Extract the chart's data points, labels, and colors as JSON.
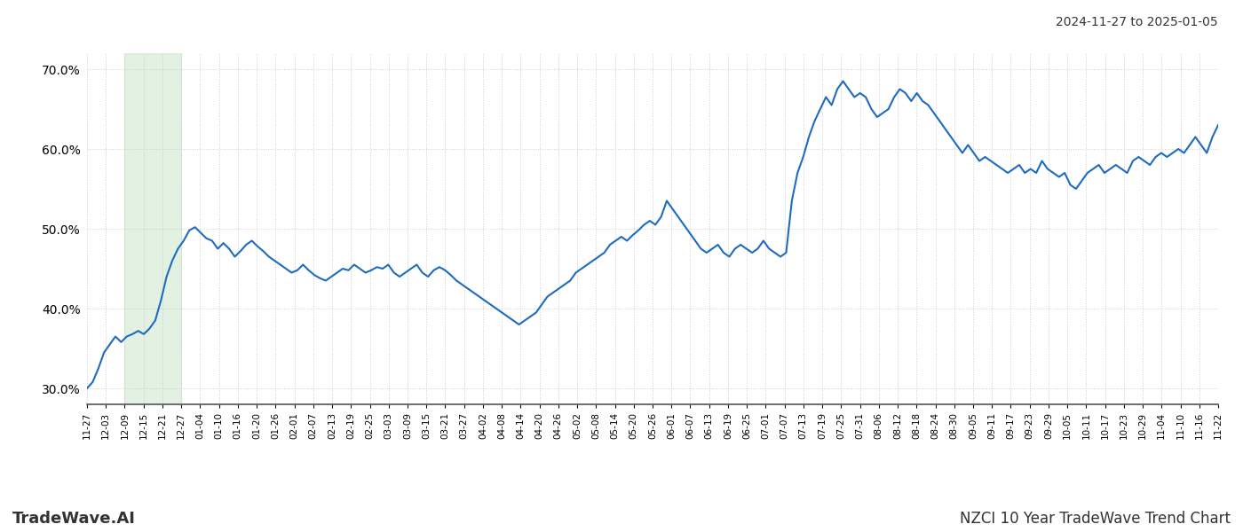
{
  "title_top_right": "2024-11-27 to 2025-01-05",
  "title_bottom_left": "TradeWave.AI",
  "title_bottom_right": "NZCI 10 Year TradeWave Trend Chart",
  "ylim": [
    28.0,
    72.0
  ],
  "yticks": [
    30.0,
    40.0,
    50.0,
    60.0,
    70.0
  ],
  "line_color": "#1f6bbf",
  "line_width": 1.5,
  "green_shade_color": "#d0e8d0",
  "green_shade_alpha": 0.6,
  "background_color": "#ffffff",
  "grid_color": "#cccccc",
  "xtick_labels": [
    "11-27",
    "12-03",
    "12-09",
    "12-15",
    "12-21",
    "12-27",
    "01-04",
    "01-10",
    "01-16",
    "01-20",
    "01-26",
    "02-01",
    "02-07",
    "02-13",
    "02-19",
    "02-25",
    "03-03",
    "03-09",
    "03-15",
    "03-21",
    "03-27",
    "04-02",
    "04-08",
    "04-14",
    "04-20",
    "04-26",
    "05-02",
    "05-08",
    "05-14",
    "05-20",
    "05-26",
    "06-01",
    "06-07",
    "06-13",
    "06-19",
    "06-25",
    "07-01",
    "07-07",
    "07-13",
    "07-19",
    "07-25",
    "07-31",
    "08-06",
    "08-12",
    "08-18",
    "08-24",
    "08-30",
    "09-05",
    "09-11",
    "09-17",
    "09-23",
    "09-29",
    "10-05",
    "10-11",
    "10-17",
    "10-23",
    "10-29",
    "11-04",
    "11-10",
    "11-16",
    "11-22"
  ],
  "green_shade_start_label": "12-09",
  "green_shade_end_label": "12-27",
  "values": [
    30.0,
    30.8,
    32.5,
    34.5,
    35.5,
    36.5,
    35.8,
    36.5,
    36.8,
    37.2,
    36.8,
    37.5,
    38.5,
    41.0,
    44.0,
    46.0,
    47.5,
    48.5,
    49.8,
    50.2,
    49.5,
    48.8,
    48.5,
    47.5,
    48.2,
    47.5,
    46.5,
    47.2,
    48.0,
    48.5,
    47.8,
    47.2,
    46.5,
    46.0,
    45.5,
    45.0,
    44.5,
    44.8,
    45.5,
    44.8,
    44.2,
    43.8,
    43.5,
    44.0,
    44.5,
    45.0,
    44.8,
    45.5,
    45.0,
    44.5,
    44.8,
    45.2,
    45.0,
    45.5,
    44.5,
    44.0,
    44.5,
    45.0,
    45.5,
    44.5,
    44.0,
    44.8,
    45.2,
    44.8,
    44.2,
    43.5,
    43.0,
    42.5,
    42.0,
    41.5,
    41.0,
    40.5,
    40.0,
    39.5,
    39.0,
    38.5,
    38.0,
    38.5,
    39.0,
    39.5,
    40.5,
    41.5,
    42.0,
    42.5,
    43.0,
    43.5,
    44.5,
    45.0,
    45.5,
    46.0,
    46.5,
    47.0,
    48.0,
    48.5,
    49.0,
    48.5,
    49.2,
    49.8,
    50.5,
    51.0,
    50.5,
    51.5,
    53.5,
    52.5,
    51.5,
    50.5,
    49.5,
    48.5,
    47.5,
    47.0,
    47.5,
    48.0,
    47.0,
    46.5,
    47.5,
    48.0,
    47.5,
    47.0,
    47.5,
    48.5,
    47.5,
    47.0,
    46.5,
    47.0,
    53.5,
    57.0,
    59.0,
    61.5,
    63.5,
    65.0,
    66.5,
    65.5,
    67.5,
    68.5,
    67.5,
    66.5,
    67.0,
    66.5,
    65.0,
    64.0,
    64.5,
    65.0,
    66.5,
    67.5,
    67.0,
    66.0,
    67.0,
    66.0,
    65.5,
    64.5,
    63.5,
    62.5,
    61.5,
    60.5,
    59.5,
    60.5,
    59.5,
    58.5,
    59.0,
    58.5,
    58.0,
    57.5,
    57.0,
    57.5,
    58.0,
    57.0,
    57.5,
    57.0,
    58.5,
    57.5,
    57.0,
    56.5,
    57.0,
    55.5,
    55.0,
    56.0,
    57.0,
    57.5,
    58.0,
    57.0,
    57.5,
    58.0,
    57.5,
    57.0,
    58.5,
    59.0,
    58.5,
    58.0,
    59.0,
    59.5,
    59.0,
    59.5,
    60.0,
    59.5,
    60.5,
    61.5,
    60.5,
    59.5,
    61.5,
    63.0
  ]
}
